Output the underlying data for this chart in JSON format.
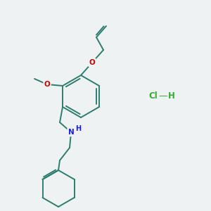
{
  "background_color": "#eef2f3",
  "bond_color": "#2d7d6e",
  "atom_colors": {
    "O": "#cc0000",
    "N": "#1a1aff",
    "Cl": "#33aa33",
    "H_label": "#33aa33"
  },
  "figsize": [
    3.0,
    3.0
  ],
  "dpi": 100,
  "lw": 1.4
}
